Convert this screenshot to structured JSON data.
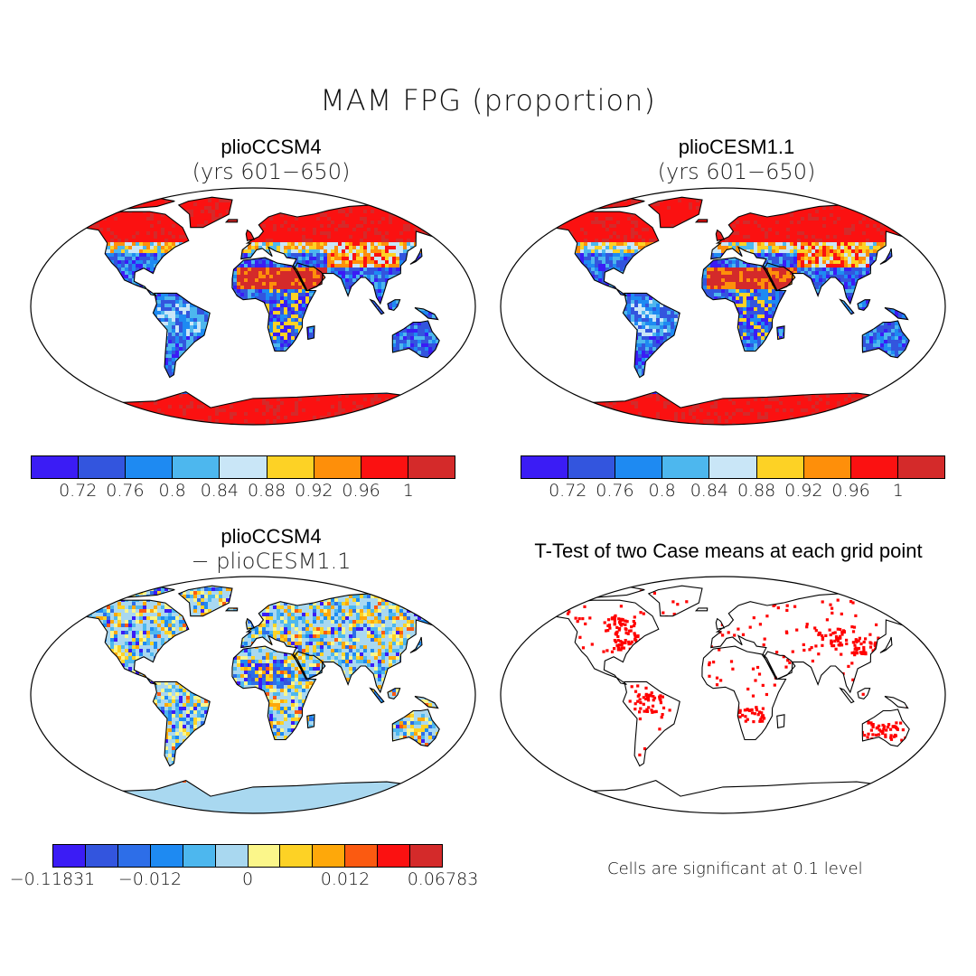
{
  "title": "MAM FPG (proportion)",
  "panels": [
    {
      "id": "tl",
      "title": "plioCCSM4",
      "subtitle": "(yrs 601−650)",
      "map_type": "fpg",
      "colorbar": {
        "colors": [
          "#3b1cf5",
          "#3355de",
          "#1e8af2",
          "#4db7ee",
          "#c9e6f7",
          "#fdd225",
          "#fe8f0a",
          "#fb1111",
          "#d42a2a"
        ],
        "ticks": [
          "0.72",
          "0.76",
          "0.8",
          "0.84",
          "0.88",
          "0.92",
          "0.96",
          "1"
        ]
      }
    },
    {
      "id": "tr",
      "title": "plioCESM1.1",
      "subtitle": "(yrs 601−650)",
      "map_type": "fpg",
      "colorbar": {
        "colors": [
          "#3b1cf5",
          "#3355de",
          "#1e8af2",
          "#4db7ee",
          "#c9e6f7",
          "#fdd225",
          "#fe8f0a",
          "#fb1111",
          "#d42a2a"
        ],
        "ticks": [
          "0.72",
          "0.76",
          "0.8",
          "0.84",
          "0.88",
          "0.92",
          "0.96",
          "1"
        ]
      }
    },
    {
      "id": "bl",
      "title": "plioCCSM4",
      "subtitle": "− plioCESM1.1",
      "map_type": "difference",
      "colorbar": {
        "colors": [
          "#3b1cf5",
          "#3355de",
          "#2d6ee8",
          "#1e8af2",
          "#4db7ee",
          "#a9d8f0",
          "#fbf68a",
          "#fdd225",
          "#fea80a",
          "#fb5a11",
          "#fb1111",
          "#d42a2a"
        ],
        "ticks": [
          "−0.11831",
          "−0.012",
          "0",
          "0.012",
          "0.06783"
        ]
      }
    },
    {
      "id": "br",
      "title": "T-Test of two Case means at each grid point",
      "subtitle": "",
      "map_type": "significance",
      "note": "Cells are significant at 0.1 level",
      "dot_color": "#ff0000"
    }
  ]
}
